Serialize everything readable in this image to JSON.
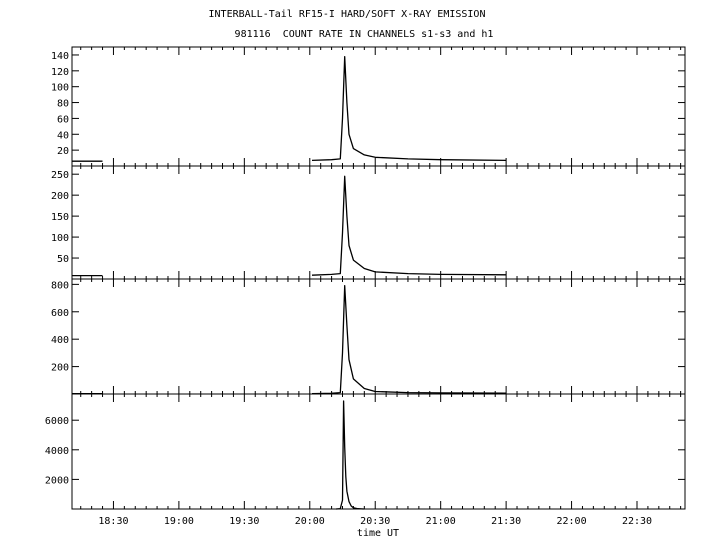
{
  "title": "INTERBALL-Tail RF15-I HARD/SOFT X-RAY EMISSION",
  "subtitle": "981116  COUNT RATE IN CHANNELS s1-s3 and h1",
  "chart_data": {
    "type": "line",
    "title": "INTERBALL-Tail RF15-I HARD/SOFT X-RAY EMISSION",
    "subtitle": "981116  COUNT RATE IN CHANNELS s1-s3 and h1",
    "xlabel": "time UT",
    "xlim": [
      "18:11",
      "22:52"
    ],
    "x_ticks": [
      "18:30",
      "19:00",
      "19:30",
      "20:00",
      "20:30",
      "21:00",
      "21:30",
      "22:00",
      "22:30"
    ],
    "grid": false,
    "panels": [
      {
        "ylim": [
          0,
          145
        ],
        "y_ticks": [
          20,
          40,
          60,
          80,
          100,
          120,
          140
        ],
        "x": [
          "18:11",
          "18:25",
          "18:33",
          "18:35",
          "19:07",
          "19:09",
          "20:01",
          "20:10",
          "20:14",
          "20:15",
          "20:16",
          "20:17",
          "20:18",
          "20:20",
          "20:25",
          "20:30",
          "20:45",
          "21:00",
          "21:30",
          "21:31",
          "21:42",
          "22:51",
          "22:52"
        ],
        "y": [
          6,
          6,
          null,
          null,
          6,
          null,
          7,
          8,
          9,
          60,
          138,
          80,
          40,
          22,
          14,
          11,
          9,
          8,
          7,
          null,
          7,
          null,
          7
        ]
      },
      {
        "ylim": [
          0,
          260
        ],
        "y_ticks": [
          50,
          100,
          150,
          200,
          250
        ],
        "x": [
          "18:11",
          "18:25",
          "18:33",
          "18:35",
          "19:07",
          "19:09",
          "20:01",
          "20:10",
          "20:14",
          "20:15",
          "20:16",
          "20:17",
          "20:18",
          "20:20",
          "20:25",
          "20:30",
          "20:45",
          "21:00",
          "21:30",
          "21:31",
          "21:42",
          "22:51",
          "22:52"
        ],
        "y": [
          8,
          8,
          null,
          null,
          8,
          null,
          9,
          11,
          13,
          110,
          245,
          150,
          80,
          45,
          25,
          17,
          13,
          11,
          10,
          null,
          10,
          null,
          10
        ]
      },
      {
        "ylim": [
          0,
          810
        ],
        "y_ticks": [
          200,
          400,
          600,
          800
        ],
        "x": [
          "18:11",
          "18:25",
          "18:33",
          "18:35",
          "19:07",
          "19:09",
          "20:01",
          "20:10",
          "20:14",
          "20:15",
          "20:16",
          "20:17",
          "20:18",
          "20:20",
          "20:25",
          "20:30",
          "20:45",
          "21:00",
          "21:30",
          "21:31",
          "21:42",
          "22:51",
          "22:52"
        ],
        "y": [
          2,
          2,
          null,
          null,
          2,
          null,
          3,
          5,
          10,
          300,
          790,
          500,
          250,
          110,
          40,
          18,
          10,
          8,
          6,
          null,
          6,
          null,
          6
        ]
      },
      {
        "ylim": [
          0,
          7500
        ],
        "y_ticks": [
          2000,
          4000,
          6000
        ],
        "x": [
          "20:12",
          "20:14",
          "20:15",
          "20:15:30",
          "20:16",
          "20:16:30",
          "20:17",
          "20:18",
          "20:19",
          "20:20",
          "20:22",
          "20:25"
        ],
        "y": [
          0,
          20,
          600,
          7300,
          4200,
          2200,
          1200,
          500,
          200,
          80,
          20,
          0
        ]
      }
    ]
  }
}
